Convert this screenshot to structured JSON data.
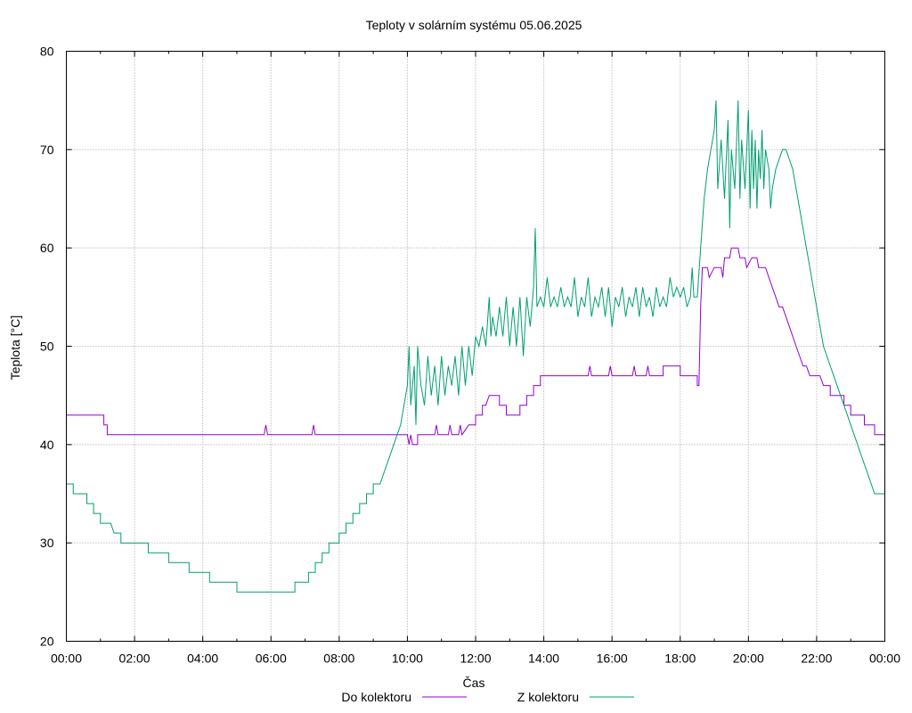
{
  "chart_data": {
    "type": "line",
    "title": "Teploty v solárním systému 05.06.2025",
    "xlabel": "Čas",
    "ylabel": "Teplota [°C]",
    "xlim": [
      0,
      24
    ],
    "ylim": [
      20,
      80
    ],
    "x_unit": "hours",
    "x_tick_labels": [
      "00:00",
      "02:00",
      "04:00",
      "06:00",
      "08:00",
      "10:00",
      "12:00",
      "14:00",
      "16:00",
      "18:00",
      "20:00",
      "22:00",
      "00:00"
    ],
    "y_tick_labels": [
      "20",
      "30",
      "40",
      "50",
      "60",
      "70",
      "80"
    ],
    "grid": true,
    "legend_position": "bottom",
    "series": [
      {
        "name": "Do kolektoru",
        "color": "#9400d3",
        "points": [
          [
            0,
            43
          ],
          [
            1.1,
            43
          ],
          [
            1.1,
            42
          ],
          [
            1.2,
            42
          ],
          [
            1.2,
            41
          ],
          [
            5.8,
            41
          ],
          [
            5.85,
            42
          ],
          [
            5.9,
            41
          ],
          [
            7.2,
            41
          ],
          [
            7.25,
            42
          ],
          [
            7.3,
            41
          ],
          [
            10.0,
            41
          ],
          [
            10.05,
            40
          ],
          [
            10.1,
            41
          ],
          [
            10.15,
            40
          ],
          [
            10.3,
            40
          ],
          [
            10.3,
            41
          ],
          [
            10.8,
            41
          ],
          [
            10.85,
            42
          ],
          [
            10.9,
            41
          ],
          [
            11.2,
            41
          ],
          [
            11.25,
            42
          ],
          [
            11.3,
            41
          ],
          [
            11.5,
            41
          ],
          [
            11.55,
            42
          ],
          [
            11.6,
            41
          ],
          [
            11.8,
            42
          ],
          [
            12.0,
            42
          ],
          [
            12.0,
            43
          ],
          [
            12.2,
            43
          ],
          [
            12.2,
            44
          ],
          [
            12.3,
            44
          ],
          [
            12.4,
            45
          ],
          [
            12.7,
            45
          ],
          [
            12.7,
            44
          ],
          [
            12.9,
            44
          ],
          [
            12.9,
            43
          ],
          [
            13.3,
            43
          ],
          [
            13.3,
            44
          ],
          [
            13.5,
            44
          ],
          [
            13.5,
            45
          ],
          [
            13.7,
            45
          ],
          [
            13.7,
            46
          ],
          [
            13.9,
            46
          ],
          [
            13.9,
            47
          ],
          [
            15.3,
            47
          ],
          [
            15.35,
            48
          ],
          [
            15.4,
            47
          ],
          [
            15.9,
            47
          ],
          [
            15.95,
            48
          ],
          [
            16.0,
            47
          ],
          [
            16.6,
            47
          ],
          [
            16.65,
            48
          ],
          [
            16.7,
            47
          ],
          [
            17.0,
            47
          ],
          [
            17.05,
            48
          ],
          [
            17.1,
            47
          ],
          [
            17.5,
            47
          ],
          [
            17.5,
            48
          ],
          [
            18.0,
            48
          ],
          [
            18.0,
            47
          ],
          [
            18.5,
            47
          ],
          [
            18.5,
            46
          ],
          [
            18.55,
            46
          ],
          [
            18.6,
            54
          ],
          [
            18.65,
            58
          ],
          [
            18.8,
            58
          ],
          [
            18.85,
            57
          ],
          [
            19.0,
            58
          ],
          [
            19.2,
            58
          ],
          [
            19.25,
            57
          ],
          [
            19.3,
            59
          ],
          [
            19.45,
            59
          ],
          [
            19.5,
            60
          ],
          [
            19.7,
            60
          ],
          [
            19.75,
            59
          ],
          [
            19.9,
            59
          ],
          [
            19.95,
            58
          ],
          [
            20.1,
            59
          ],
          [
            20.25,
            59
          ],
          [
            20.3,
            58
          ],
          [
            20.5,
            58
          ],
          [
            20.6,
            57
          ],
          [
            20.7,
            56
          ],
          [
            20.8,
            55
          ],
          [
            20.9,
            54
          ],
          [
            21.0,
            54
          ],
          [
            21.1,
            53
          ],
          [
            21.2,
            52
          ],
          [
            21.3,
            51
          ],
          [
            21.4,
            50
          ],
          [
            21.5,
            49
          ],
          [
            21.6,
            48
          ],
          [
            21.7,
            48
          ],
          [
            21.8,
            47
          ],
          [
            22.1,
            47
          ],
          [
            22.2,
            46
          ],
          [
            22.4,
            46
          ],
          [
            22.4,
            45
          ],
          [
            22.8,
            45
          ],
          [
            22.8,
            44
          ],
          [
            23.0,
            44
          ],
          [
            23.0,
            43
          ],
          [
            23.4,
            43
          ],
          [
            23.4,
            42
          ],
          [
            23.7,
            42
          ],
          [
            23.7,
            41
          ],
          [
            24,
            41
          ]
        ]
      },
      {
        "name": "Z kolektoru",
        "color": "#009e73",
        "points": [
          [
            0,
            36
          ],
          [
            0.2,
            36
          ],
          [
            0.2,
            35
          ],
          [
            0.6,
            35
          ],
          [
            0.6,
            34
          ],
          [
            0.8,
            34
          ],
          [
            0.8,
            33
          ],
          [
            1.0,
            33
          ],
          [
            1.0,
            32
          ],
          [
            1.2,
            32
          ],
          [
            1.3,
            32
          ],
          [
            1.4,
            31
          ],
          [
            1.6,
            31
          ],
          [
            1.6,
            30
          ],
          [
            2.4,
            30
          ],
          [
            2.4,
            29
          ],
          [
            3.0,
            29
          ],
          [
            3.0,
            28
          ],
          [
            3.6,
            28
          ],
          [
            3.6,
            27
          ],
          [
            4.2,
            27
          ],
          [
            4.2,
            26
          ],
          [
            5.0,
            26
          ],
          [
            5.0,
            25
          ],
          [
            6.7,
            25
          ],
          [
            6.7,
            26
          ],
          [
            7.1,
            26
          ],
          [
            7.1,
            27
          ],
          [
            7.3,
            27
          ],
          [
            7.3,
            28
          ],
          [
            7.5,
            28
          ],
          [
            7.5,
            29
          ],
          [
            7.7,
            29
          ],
          [
            7.7,
            30
          ],
          [
            8.0,
            30
          ],
          [
            8.0,
            31
          ],
          [
            8.2,
            31
          ],
          [
            8.2,
            32
          ],
          [
            8.4,
            32
          ],
          [
            8.4,
            33
          ],
          [
            8.6,
            33
          ],
          [
            8.6,
            34
          ],
          [
            8.8,
            34
          ],
          [
            8.8,
            35
          ],
          [
            9.0,
            35
          ],
          [
            9.0,
            36
          ],
          [
            9.2,
            36
          ],
          [
            9.3,
            37
          ],
          [
            9.4,
            38
          ],
          [
            9.5,
            39
          ],
          [
            9.6,
            40
          ],
          [
            9.7,
            41
          ],
          [
            9.8,
            42
          ],
          [
            9.9,
            44
          ],
          [
            10.0,
            46
          ],
          [
            10.05,
            50
          ],
          [
            10.1,
            44
          ],
          [
            10.2,
            48
          ],
          [
            10.25,
            42
          ],
          [
            10.3,
            50
          ],
          [
            10.4,
            46
          ],
          [
            10.5,
            44
          ],
          [
            10.6,
            49
          ],
          [
            10.7,
            45
          ],
          [
            10.8,
            48
          ],
          [
            10.9,
            44
          ],
          [
            11.0,
            49
          ],
          [
            11.1,
            45
          ],
          [
            11.2,
            48
          ],
          [
            11.3,
            46
          ],
          [
            11.4,
            49
          ],
          [
            11.5,
            45
          ],
          [
            11.6,
            50
          ],
          [
            11.7,
            46
          ],
          [
            11.8,
            50
          ],
          [
            11.9,
            47
          ],
          [
            12.0,
            51
          ],
          [
            12.1,
            50
          ],
          [
            12.2,
            52
          ],
          [
            12.3,
            50
          ],
          [
            12.4,
            55
          ],
          [
            12.45,
            51
          ],
          [
            12.5,
            53
          ],
          [
            12.6,
            51
          ],
          [
            12.7,
            54
          ],
          [
            12.8,
            51
          ],
          [
            12.9,
            55
          ],
          [
            13.0,
            50
          ],
          [
            13.1,
            54
          ],
          [
            13.2,
            50
          ],
          [
            13.3,
            55
          ],
          [
            13.4,
            49
          ],
          [
            13.5,
            55
          ],
          [
            13.6,
            52
          ],
          [
            13.7,
            56
          ],
          [
            13.75,
            62
          ],
          [
            13.8,
            54
          ],
          [
            13.9,
            55
          ],
          [
            14.0,
            54
          ],
          [
            14.1,
            57
          ],
          [
            14.2,
            54
          ],
          [
            14.3,
            55
          ],
          [
            14.4,
            54
          ],
          [
            14.5,
            56
          ],
          [
            14.6,
            54
          ],
          [
            14.7,
            55
          ],
          [
            14.8,
            54
          ],
          [
            14.9,
            57
          ],
          [
            15.0,
            53
          ],
          [
            15.1,
            55
          ],
          [
            15.2,
            54
          ],
          [
            15.3,
            57
          ],
          [
            15.4,
            53
          ],
          [
            15.5,
            55
          ],
          [
            15.6,
            54
          ],
          [
            15.7,
            56
          ],
          [
            15.8,
            53
          ],
          [
            15.9,
            56
          ],
          [
            16.0,
            52
          ],
          [
            16.1,
            55
          ],
          [
            16.2,
            54
          ],
          [
            16.3,
            56
          ],
          [
            16.4,
            53
          ],
          [
            16.5,
            55
          ],
          [
            16.6,
            54
          ],
          [
            16.7,
            56
          ],
          [
            16.8,
            53
          ],
          [
            16.9,
            56
          ],
          [
            17.0,
            54
          ],
          [
            17.1,
            55
          ],
          [
            17.2,
            53
          ],
          [
            17.3,
            56
          ],
          [
            17.4,
            54
          ],
          [
            17.5,
            55
          ],
          [
            17.6,
            54
          ],
          [
            17.7,
            57
          ],
          [
            17.8,
            55
          ],
          [
            17.9,
            56
          ],
          [
            18.0,
            55
          ],
          [
            18.1,
            56
          ],
          [
            18.2,
            54
          ],
          [
            18.3,
            55
          ],
          [
            18.35,
            58
          ],
          [
            18.4,
            55
          ],
          [
            18.5,
            55
          ],
          [
            18.6,
            60
          ],
          [
            18.7,
            65
          ],
          [
            18.8,
            68
          ],
          [
            18.9,
            70
          ],
          [
            19.0,
            72
          ],
          [
            19.05,
            75
          ],
          [
            19.1,
            66
          ],
          [
            19.2,
            71
          ],
          [
            19.3,
            65
          ],
          [
            19.4,
            73
          ],
          [
            19.45,
            62
          ],
          [
            19.5,
            70
          ],
          [
            19.6,
            66
          ],
          [
            19.7,
            75
          ],
          [
            19.75,
            65
          ],
          [
            19.8,
            71
          ],
          [
            19.9,
            66
          ],
          [
            20.0,
            74
          ],
          [
            20.05,
            64
          ],
          [
            20.1,
            72
          ],
          [
            20.15,
            66
          ],
          [
            20.2,
            71
          ],
          [
            20.25,
            64
          ],
          [
            20.3,
            70
          ],
          [
            20.35,
            67
          ],
          [
            20.4,
            72
          ],
          [
            20.45,
            66
          ],
          [
            20.5,
            70
          ],
          [
            20.6,
            68
          ],
          [
            20.65,
            64
          ],
          [
            20.7,
            66
          ],
          [
            20.8,
            68
          ],
          [
            20.9,
            69
          ],
          [
            21.0,
            70
          ],
          [
            21.1,
            70
          ],
          [
            21.2,
            69
          ],
          [
            21.3,
            68
          ],
          [
            21.4,
            66
          ],
          [
            21.5,
            64
          ],
          [
            21.6,
            62
          ],
          [
            21.7,
            60
          ],
          [
            21.8,
            58
          ],
          [
            21.9,
            56
          ],
          [
            22.0,
            54
          ],
          [
            22.1,
            52
          ],
          [
            22.2,
            50
          ],
          [
            22.3,
            49
          ],
          [
            22.4,
            48
          ],
          [
            22.5,
            47
          ],
          [
            22.6,
            46
          ],
          [
            22.7,
            45
          ],
          [
            22.8,
            44
          ],
          [
            22.9,
            43
          ],
          [
            23.0,
            42
          ],
          [
            23.1,
            41
          ],
          [
            23.2,
            40
          ],
          [
            23.3,
            39
          ],
          [
            23.4,
            38
          ],
          [
            23.5,
            37
          ],
          [
            23.6,
            36
          ],
          [
            23.7,
            35
          ],
          [
            24,
            35
          ]
        ]
      }
    ]
  }
}
